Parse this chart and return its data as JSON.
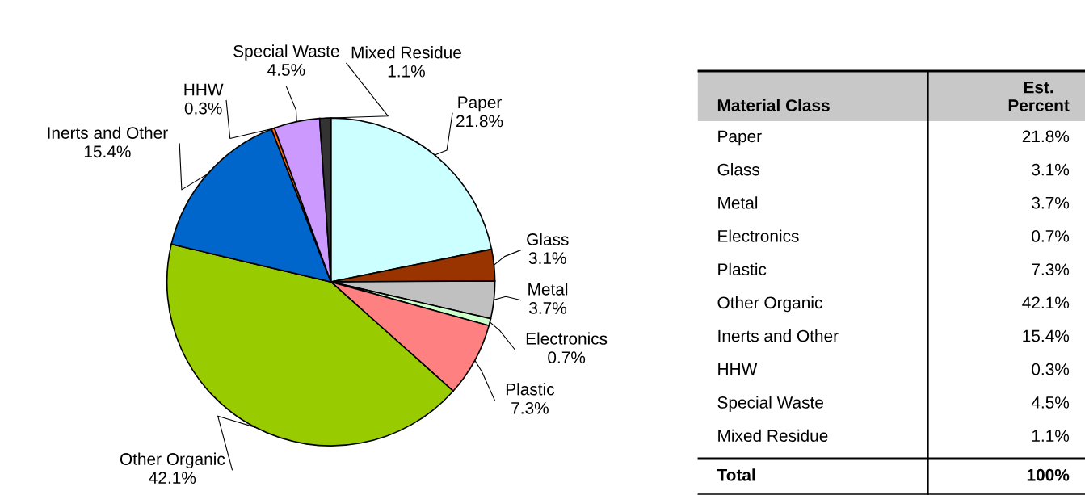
{
  "chart_data": {
    "type": "pie",
    "categories": [
      "Paper",
      "Glass",
      "Metal",
      "Electronics",
      "Plastic",
      "Other Organic",
      "Inerts and Other",
      "HHW",
      "Special Waste",
      "Mixed Residue"
    ],
    "values": [
      21.8,
      3.1,
      3.7,
      0.7,
      7.3,
      42.1,
      15.4,
      0.3,
      4.5,
      1.1
    ],
    "value_labels": [
      "21.8%",
      "3.1%",
      "3.7%",
      "0.7%",
      "7.3%",
      "42.1%",
      "15.4%",
      "0.3%",
      "4.5%",
      "1.1%"
    ],
    "colors": [
      "#ccffff",
      "#993300",
      "#c0c0c0",
      "#ccffcc",
      "#ff8080",
      "#99cc00",
      "#0066cc",
      "#ff6600",
      "#cc99ff",
      "#333333"
    ],
    "annotations": [
      "Material Class",
      "Est.\nPercent",
      "Total",
      "100%"
    ],
    "legend": false
  }
}
